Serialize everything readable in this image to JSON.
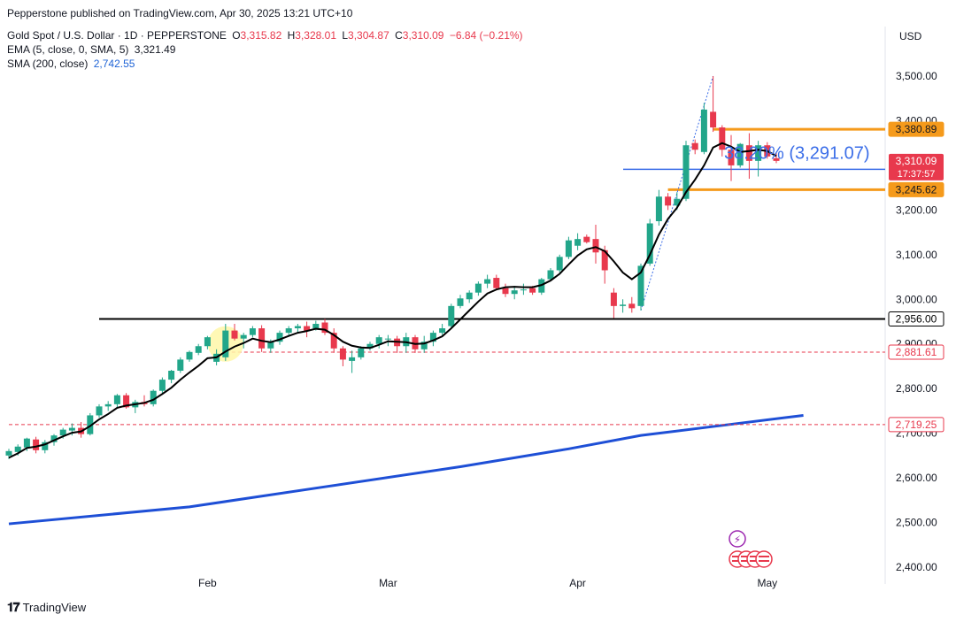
{
  "publisher_line": "Pepperstone published on TradingView.com, Apr 30, 2025 13:21 UTC+10",
  "legend": {
    "symbol": "Gold Spot / U.S. Dollar · 1D · PEPPERSTONE",
    "o_label": "O",
    "o": "3,315.82",
    "h_label": "H",
    "h": "3,328.01",
    "l_label": "L",
    "l": "3,304.87",
    "c_label": "C",
    "c": "3,310.09",
    "chg": "−6.84 (−0.21%)",
    "ema_label": "EMA (5, close, 0, SMA, 5)",
    "ema_value": "3,321.49",
    "sma_label": "SMA (200, close)",
    "sma_value": "2,742.55"
  },
  "currency": "USD",
  "footer": {
    "brand": "TradingView"
  },
  "colors": {
    "up": "#22a68a",
    "down": "#e8394d",
    "ema": "#000000",
    "sma": "#1e4fd6",
    "level_orange": "#f59a1b",
    "fib_blue": "#3b6ee8"
  },
  "chart_data": {
    "type": "candlestick",
    "title": "Gold Spot / U.S. Dollar · 1D · PEPPERSTONE",
    "ylabel": "USD",
    "ylim": [
      2380,
      3580
    ],
    "y_ticks": [
      "3,500.00",
      "3,400.00",
      "3,300.00",
      "3,200.00",
      "3,100.00",
      "3,000.00",
      "2,900.00",
      "2,800.00",
      "2,700.00",
      "2,600.00",
      "2,500.00",
      "2,400.00"
    ],
    "y_tick_values": [
      3500,
      3400,
      3300,
      3200,
      3100,
      3000,
      2900,
      2800,
      2700,
      2600,
      2500,
      2400
    ],
    "x_ticks": [
      "Feb",
      "Mar",
      "Apr",
      "May"
    ],
    "x_tick_index": [
      22,
      42,
      63,
      84
    ],
    "candles": [
      [
        2650,
        2665,
        2642,
        2660
      ],
      [
        2658,
        2675,
        2650,
        2670
      ],
      [
        2668,
        2690,
        2660,
        2688
      ],
      [
        2686,
        2692,
        2655,
        2662
      ],
      [
        2662,
        2685,
        2655,
        2680
      ],
      [
        2680,
        2698,
        2672,
        2695
      ],
      [
        2695,
        2712,
        2688,
        2708
      ],
      [
        2706,
        2722,
        2695,
        2712
      ],
      [
        2712,
        2725,
        2690,
        2698
      ],
      [
        2698,
        2745,
        2695,
        2740
      ],
      [
        2740,
        2765,
        2735,
        2760
      ],
      [
        2760,
        2772,
        2750,
        2765
      ],
      [
        2765,
        2788,
        2758,
        2785
      ],
      [
        2785,
        2790,
        2755,
        2758
      ],
      [
        2758,
        2775,
        2745,
        2770
      ],
      [
        2770,
        2785,
        2760,
        2765
      ],
      [
        2765,
        2798,
        2760,
        2795
      ],
      [
        2795,
        2825,
        2790,
        2820
      ],
      [
        2820,
        2842,
        2812,
        2840
      ],
      [
        2840,
        2870,
        2835,
        2865
      ],
      [
        2865,
        2885,
        2860,
        2882
      ],
      [
        2880,
        2900,
        2875,
        2895
      ],
      [
        2895,
        2918,
        2888,
        2915
      ],
      [
        2860,
        2888,
        2852,
        2878
      ],
      [
        2870,
        2945,
        2862,
        2930
      ],
      [
        2930,
        2945,
        2908,
        2912
      ],
      [
        2912,
        2925,
        2890,
        2920
      ],
      [
        2920,
        2940,
        2915,
        2935
      ],
      [
        2935,
        2942,
        2882,
        2890
      ],
      [
        2890,
        2910,
        2880,
        2905
      ],
      [
        2905,
        2930,
        2898,
        2925
      ],
      [
        2925,
        2940,
        2918,
        2935
      ],
      [
        2935,
        2945,
        2925,
        2940
      ],
      [
        2940,
        2950,
        2915,
        2930
      ],
      [
        2935,
        2952,
        2930,
        2945
      ],
      [
        2948,
        2956,
        2920,
        2925
      ],
      [
        2925,
        2935,
        2880,
        2890
      ],
      [
        2890,
        2895,
        2850,
        2865
      ],
      [
        2862,
        2885,
        2835,
        2870
      ],
      [
        2870,
        2895,
        2865,
        2890
      ],
      [
        2890,
        2905,
        2885,
        2900
      ],
      [
        2900,
        2920,
        2890,
        2915
      ],
      [
        2910,
        2920,
        2895,
        2912
      ],
      [
        2912,
        2918,
        2880,
        2895
      ],
      [
        2895,
        2925,
        2880,
        2915
      ],
      [
        2915,
        2920,
        2880,
        2888
      ],
      [
        2888,
        2918,
        2880,
        2905
      ],
      [
        2905,
        2930,
        2895,
        2925
      ],
      [
        2925,
        2945,
        2920,
        2935
      ],
      [
        2940,
        2990,
        2935,
        2985
      ],
      [
        2985,
        3010,
        2980,
        3002
      ],
      [
        3000,
        3020,
        2992,
        3015
      ],
      [
        3015,
        3040,
        3008,
        3035
      ],
      [
        3035,
        3055,
        3025,
        3045
      ],
      [
        3048,
        3055,
        3020,
        3025
      ],
      [
        3025,
        3035,
        3005,
        3012
      ],
      [
        3012,
        3030,
        3000,
        3020
      ],
      [
        3020,
        3035,
        3010,
        3022
      ],
      [
        3025,
        3030,
        3010,
        3015
      ],
      [
        3015,
        3048,
        3010,
        3045
      ],
      [
        3045,
        3070,
        3040,
        3065
      ],
      [
        3065,
        3100,
        3060,
        3095
      ],
      [
        3095,
        3140,
        3090,
        3132
      ],
      [
        3120,
        3148,
        3110,
        3135
      ],
      [
        3140,
        3145,
        3125,
        3128
      ],
      [
        3135,
        3167,
        3080,
        3105
      ],
      [
        3110,
        3120,
        3035,
        3065
      ],
      [
        3015,
        3025,
        2958,
        2985
      ],
      [
        2985,
        3000,
        2970,
        2988
      ],
      [
        2990,
        3005,
        2970,
        2980
      ],
      [
        2985,
        3080,
        2975,
        3075
      ],
      [
        3080,
        3180,
        3075,
        3170
      ],
      [
        3175,
        3245,
        3165,
        3230
      ],
      [
        3230,
        3238,
        3200,
        3210
      ],
      [
        3210,
        3240,
        3200,
        3225
      ],
      [
        3225,
        3355,
        3220,
        3345
      ],
      [
        3350,
        3358,
        3325,
        3335
      ],
      [
        3330,
        3440,
        3325,
        3425
      ],
      [
        3420,
        3500,
        3375,
        3385
      ],
      [
        3385,
        3390,
        3320,
        3335
      ],
      [
        3335,
        3368,
        3265,
        3300
      ],
      [
        3300,
        3350,
        3295,
        3348
      ],
      [
        3345,
        3372,
        3270,
        3310
      ],
      [
        3310,
        3355,
        3275,
        3345
      ],
      [
        3345,
        3352,
        3315,
        3320
      ],
      [
        3316,
        3328,
        3305,
        3310
      ]
    ],
    "ema": [
      2645,
      2655,
      2667,
      2670,
      2675,
      2684,
      2693,
      2701,
      2704,
      2716,
      2731,
      2743,
      2757,
      2762,
      2765,
      2768,
      2775,
      2788,
      2802,
      2820,
      2836,
      2851,
      2868,
      2870,
      2883,
      2894,
      2902,
      2912,
      2907,
      2904,
      2910,
      2918,
      2925,
      2929,
      2934,
      2932,
      2920,
      2905,
      2896,
      2892,
      2891,
      2898,
      2906,
      2905,
      2904,
      2900,
      2901,
      2908,
      2917,
      2935,
      2955,
      2975,
      2995,
      3013,
      3022,
      3027,
      3028,
      3027,
      3027,
      3032,
      3042,
      3057,
      3078,
      3098,
      3112,
      3117,
      3108,
      3085,
      3060,
      3045,
      3060,
      3100,
      3145,
      3180,
      3205,
      3240,
      3268,
      3300,
      3340,
      3350,
      3342,
      3330,
      3332,
      3335,
      3332,
      3321
    ],
    "sma200_points": [
      [
        0,
        2497
      ],
      [
        20,
        2535
      ],
      [
        35,
        2580
      ],
      [
        50,
        2625
      ],
      [
        62,
        2665
      ],
      [
        70,
        2695
      ],
      [
        78,
        2715
      ],
      [
        88,
        2740
      ]
    ],
    "levels": [
      {
        "label": "3,380.89",
        "value": 3380.89,
        "color": "#f59a1b",
        "style": "solid-thick",
        "from_index": 78
      },
      {
        "label": "3,245.62",
        "value": 3245.62,
        "color": "#f59a1b",
        "style": "solid-thick",
        "from_index": 73
      },
      {
        "label": "2,956.00",
        "value": 2956,
        "color": "#000000",
        "style": "solid",
        "from_index": 10
      },
      {
        "label": "2,881.61",
        "value": 2881.61,
        "color": "#e8394d",
        "style": "dashed",
        "from_index": 24
      },
      {
        "label": "2,719.25",
        "value": 2719.25,
        "color": "#e8394d",
        "style": "dashed",
        "from_index": 0
      }
    ],
    "fib_line": {
      "value": 3291.07,
      "from_index": 70,
      "label": "38.20% (3,291.07)"
    },
    "last_price": {
      "label": "3,310.09",
      "value": 3310.09,
      "countdown": "17:37:57"
    }
  }
}
